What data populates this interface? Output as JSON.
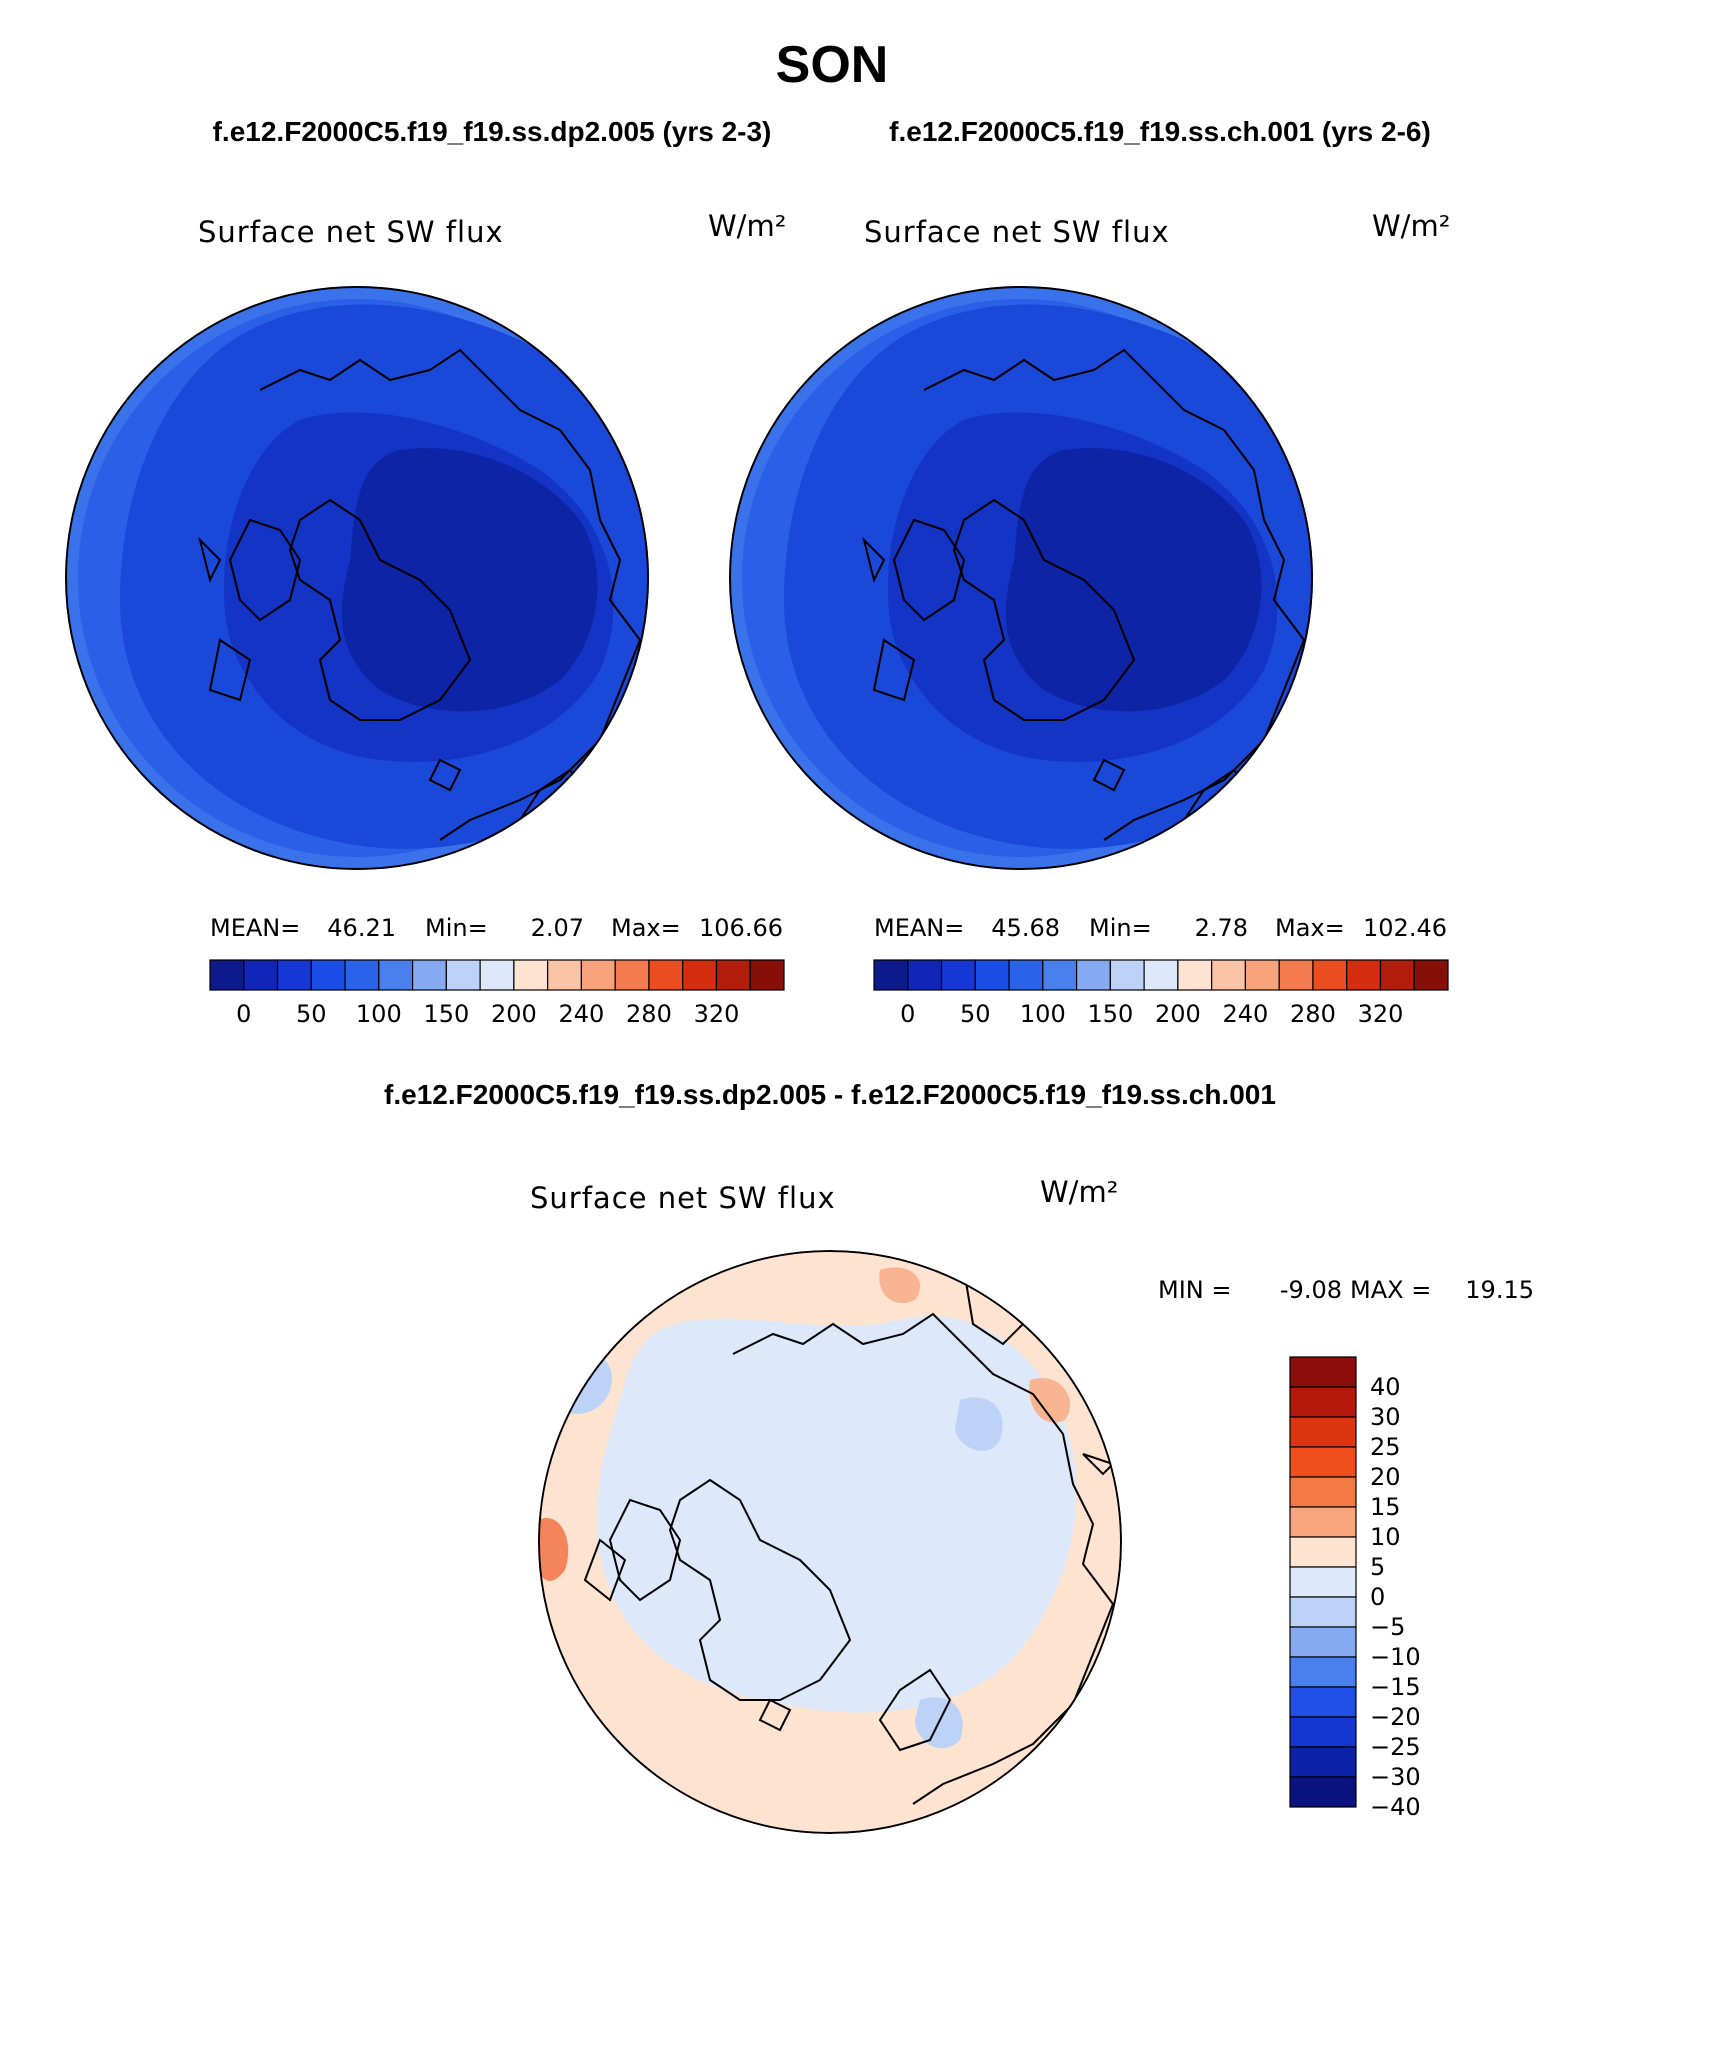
{
  "season": "SON",
  "cases": {
    "left": "f.e12.F2000C5.f19_f19.ss.dp2.005 (yrs 2-3)",
    "right": "f.e12.F2000C5.f19_f19.ss.ch.001 (yrs 2-6)"
  },
  "diff_title": "f.e12.F2000C5.f19_f19.ss.dp2.005 - f.e12.F2000C5.f19_f19.ss.ch.001",
  "variable": "Surface net SW flux",
  "units": "W/m²",
  "panels": [
    {
      "mean_label": "MEAN=",
      "mean": "46.21",
      "min_label": "Min=",
      "min": "2.07",
      "max_label": "Max=",
      "max": "106.66"
    },
    {
      "mean_label": "MEAN=",
      "mean": "45.68",
      "min_label": "Min=",
      "min": "2.78",
      "max_label": "Max=",
      "max": "102.46"
    }
  ],
  "abs_colorbar": {
    "colors": [
      "#0c1a8c",
      "#0f26b8",
      "#1537d6",
      "#1a4ce6",
      "#2a63ea",
      "#4a80ee",
      "#86aaf2",
      "#bcd2f7",
      "#dde9fb",
      "#fde3d0",
      "#fcc4a6",
      "#f9a37c",
      "#f47b4d",
      "#ea4d1f",
      "#d42d0f",
      "#b21d0c",
      "#861008"
    ],
    "tick_labels": [
      "0",
      "50",
      "100",
      "150",
      "200",
      "240",
      "280",
      "320"
    ]
  },
  "diff_stats": {
    "min_label": "MIN =",
    "min": "-9.08",
    "max_label": "MAX =",
    "max": "19.15"
  },
  "diff_colorbar": {
    "colors_top_to_bottom": [
      "#8c0e0a",
      "#b5190c",
      "#dc3510",
      "#f04f1c",
      "#f47a45",
      "#f8a57d",
      "#fde3d0",
      "#dde9fb",
      "#bcd2f7",
      "#86aaf2",
      "#4a80ee",
      "#1f4fe6",
      "#1236cf",
      "#0c22a8",
      "#0a137f"
    ],
    "labels": [
      "40",
      "30",
      "25",
      "20",
      "15",
      "10",
      "5",
      "0",
      "−5",
      "−10",
      "−15",
      "−20",
      "−25",
      "−30",
      "−40"
    ]
  },
  "map_colors": {
    "abs_outer": "#2a5fe8",
    "abs_mid": "#1a48d8",
    "abs_inner": "#1334c4",
    "abs_core": "#0e24a6",
    "diff_base": "#fde3d0",
    "diff_neg": "#dde9fb",
    "diff_neg2": "#bcd2f7",
    "diff_pos": "#f9b592",
    "coast": "#000000"
  }
}
